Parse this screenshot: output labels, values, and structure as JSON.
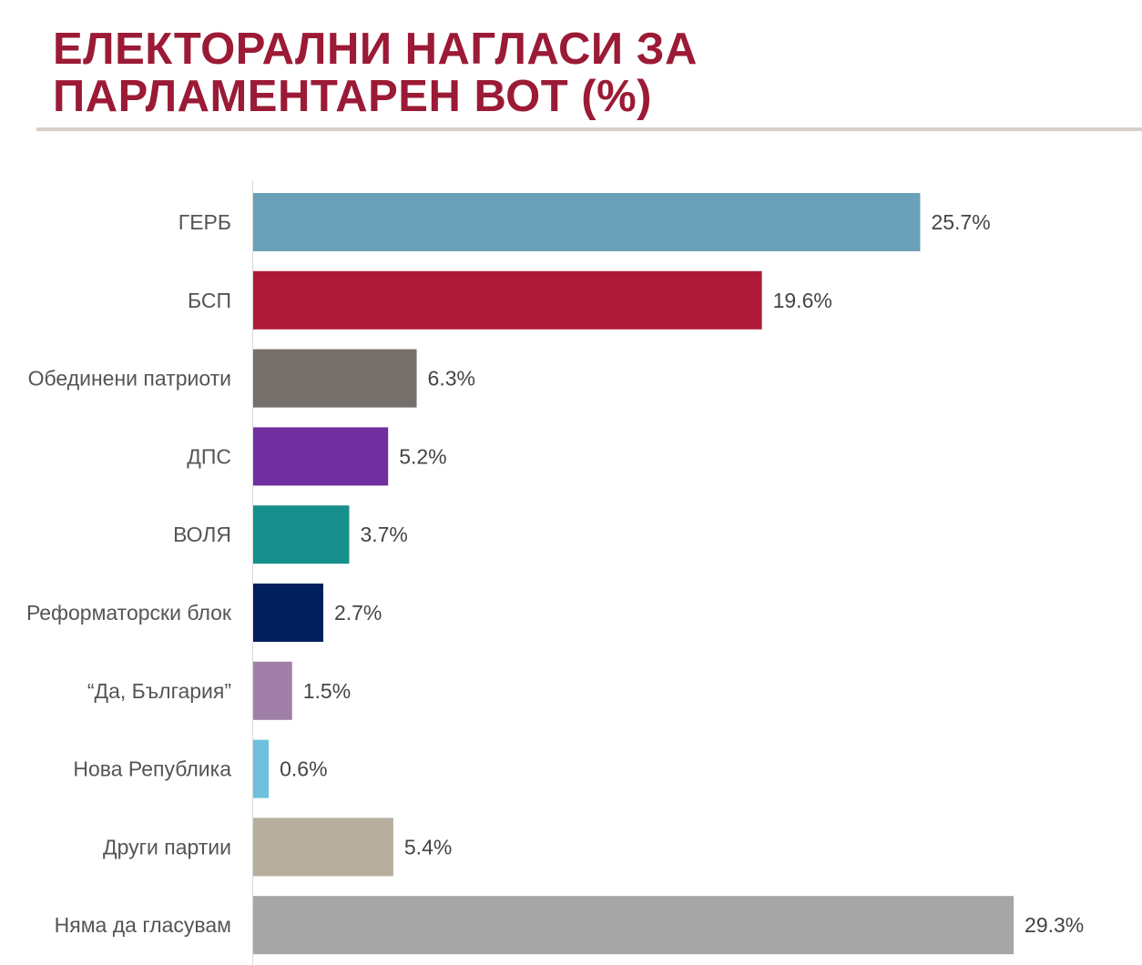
{
  "header": {
    "title": "ЕЛЕКТОРАЛНИ НАГЛАСИ ЗА ПАРЛАМЕНТАРЕН ВОТ (%)"
  },
  "chart_data": {
    "type": "bar",
    "orientation": "horizontal",
    "title": "ЕЛЕКТОРАЛНИ НАГЛАСИ ЗА ПАРЛАМЕНТАРЕН ВОТ (%)",
    "categories": [
      "ГЕРБ",
      "БСП",
      "Обединени патриоти",
      "ДПС",
      "ВОЛЯ",
      "Реформаторски блок",
      "“Да, България”",
      "Нова Република",
      "Други партии",
      "Няма да гласувам"
    ],
    "values": [
      25.7,
      19.6,
      6.3,
      5.2,
      3.7,
      2.7,
      1.5,
      0.6,
      5.4,
      29.3
    ],
    "value_labels": [
      "25.7%",
      "19.6%",
      "6.3%",
      "5.2%",
      "3.7%",
      "2.7%",
      "1.5%",
      "0.6%",
      "5.4%",
      "29.3%"
    ],
    "colors": [
      "#6aa0b8",
      "#ad1a37",
      "#76706c",
      "#7030a0",
      "#178f8c",
      "#001f5c",
      "#a080a8",
      "#6ec0dc",
      "#b8ae9e",
      "#a6a6a6"
    ],
    "xlim": [
      0,
      30
    ],
    "grid": false,
    "legend": "none"
  }
}
